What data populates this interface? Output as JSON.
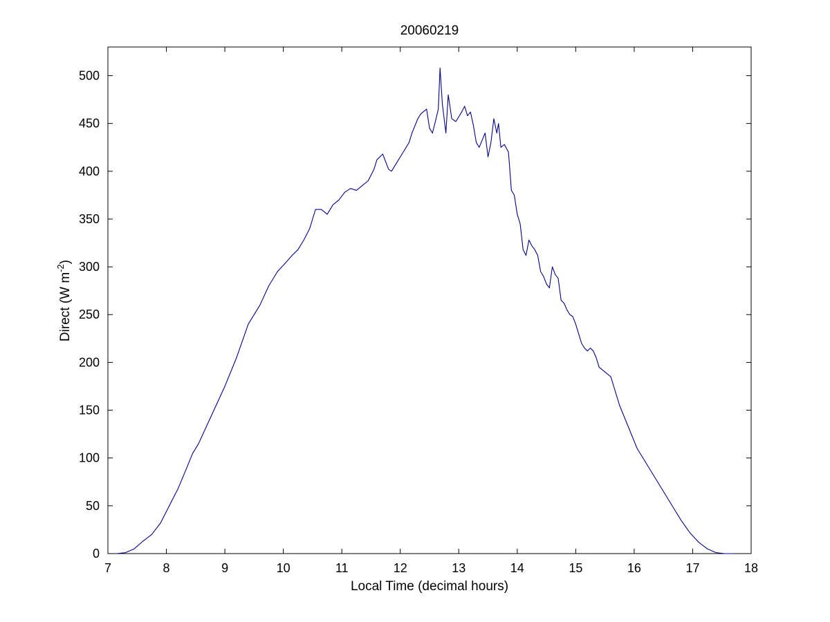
{
  "chart_data": {
    "type": "line",
    "title": "20060219",
    "xlabel": "Local Time (decimal hours)",
    "ylabel": {
      "main": "Direct (W m",
      "superscript": "-2",
      "close": ")"
    },
    "xlim": [
      7,
      18
    ],
    "ylim": [
      0,
      530
    ],
    "xticks": [
      7,
      8,
      9,
      10,
      11,
      12,
      13,
      14,
      15,
      16,
      17,
      18
    ],
    "yticks": [
      0,
      50,
      100,
      150,
      200,
      250,
      300,
      350,
      400,
      450,
      500
    ],
    "grid": false,
    "line_color": "#00008b",
    "series": [
      {
        "x": [
          7.15,
          7.3,
          7.45,
          7.6,
          7.75,
          7.9,
          8.05,
          8.2,
          8.35,
          8.45,
          8.55,
          8.7,
          8.85,
          9.0,
          9.2,
          9.4,
          9.6,
          9.75,
          9.9,
          10.05,
          10.15,
          10.25,
          10.35,
          10.45,
          10.55,
          10.65,
          10.75,
          10.85,
          10.95,
          11.05,
          11.15,
          11.25,
          11.35,
          11.45,
          11.55,
          11.6,
          11.7,
          11.8,
          11.85,
          11.95,
          12.05,
          12.15,
          12.2,
          12.3,
          12.35,
          12.45,
          12.5,
          12.55,
          12.6,
          12.65,
          12.68,
          12.72,
          12.78,
          12.82,
          12.88,
          12.95,
          13.05,
          13.1,
          13.15,
          13.2,
          13.25,
          13.3,
          13.35,
          13.45,
          13.5,
          13.55,
          13.6,
          13.65,
          13.68,
          13.72,
          13.78,
          13.85,
          13.9,
          13.95,
          14.0,
          14.05,
          14.1,
          14.15,
          14.2,
          14.25,
          14.3,
          14.35,
          14.4,
          14.45,
          14.5,
          14.55,
          14.6,
          14.65,
          14.7,
          14.75,
          14.8,
          14.85,
          14.9,
          14.95,
          15.0,
          15.05,
          15.1,
          15.15,
          15.2,
          15.25,
          15.3,
          15.35,
          15.4,
          15.5,
          15.6,
          15.7,
          15.75,
          15.85,
          15.95,
          16.05,
          16.2,
          16.35,
          16.5,
          16.65,
          16.8,
          16.95,
          17.1,
          17.25,
          17.4,
          17.55,
          17.7
        ],
        "y": [
          0,
          1,
          5,
          13,
          20,
          32,
          50,
          68,
          90,
          105,
          115,
          135,
          155,
          175,
          205,
          240,
          260,
          280,
          295,
          305,
          312,
          318,
          328,
          340,
          360,
          360,
          355,
          365,
          370,
          378,
          382,
          380,
          385,
          390,
          402,
          412,
          418,
          402,
          400,
          410,
          420,
          430,
          440,
          455,
          460,
          465,
          445,
          440,
          452,
          465,
          508,
          470,
          440,
          480,
          455,
          452,
          462,
          468,
          458,
          462,
          448,
          430,
          425,
          440,
          415,
          430,
          455,
          440,
          450,
          425,
          428,
          420,
          380,
          375,
          355,
          345,
          318,
          312,
          328,
          322,
          318,
          312,
          295,
          290,
          282,
          278,
          300,
          292,
          288,
          265,
          262,
          255,
          250,
          248,
          240,
          230,
          220,
          215,
          212,
          215,
          212,
          205,
          195,
          190,
          185,
          165,
          155,
          140,
          125,
          110,
          95,
          80,
          65,
          50,
          35,
          22,
          12,
          5,
          1,
          0,
          0
        ]
      }
    ]
  }
}
